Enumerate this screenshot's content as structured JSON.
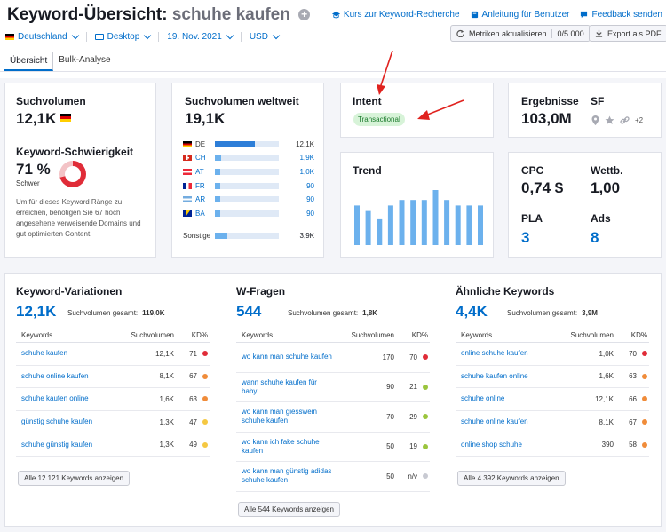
{
  "header": {
    "title": "Keyword-Übersicht:",
    "keyword": "schuhe kaufen",
    "links": {
      "research": "Kurs zur Keyword-Recherche",
      "manual": "Anleitung für Benutzer",
      "feedback": "Feedback senden"
    },
    "filters": {
      "country": "Deutschland",
      "device": "Desktop",
      "date": "19. Nov. 2021",
      "currency": "USD"
    },
    "update_button": "Metriken aktualisieren",
    "update_count": "0/5.000",
    "export_button": "Export als PDF",
    "tabs": [
      "Übersicht",
      "Bulk-Analyse"
    ]
  },
  "volume": {
    "label": "Suchvolumen",
    "value": "12,1K",
    "difficulty_label": "Keyword-Schwierigkeit",
    "difficulty_value": "71 %",
    "difficulty_text": "Schwer",
    "difficulty_percent": 71,
    "difficulty_color": "#e02c38",
    "description": "Um für dieses Keyword Ränge zu erreichen, benötigen Sie 67 hoch angesehene verweisende Domains und gut optimierten Content."
  },
  "global": {
    "label": "Suchvolumen weltweit",
    "value": "19,1K",
    "countries": [
      {
        "code": "DE",
        "value": "12,1K",
        "share": 0.63
      },
      {
        "code": "CH",
        "value": "1,9K",
        "share": 0.1
      },
      {
        "code": "AT",
        "value": "1,0K",
        "share": 0.06
      },
      {
        "code": "FR",
        "value": "90",
        "share": 0.02
      },
      {
        "code": "AR",
        "value": "90",
        "share": 0.02
      },
      {
        "code": "BA",
        "value": "90",
        "share": 0.02
      }
    ],
    "other_label": "Sonstige",
    "other_value": "3,9K",
    "other_share": 0.2
  },
  "intent": {
    "label": "Intent",
    "badge": "Transactional"
  },
  "trend": {
    "label": "Trend",
    "values": [
      0.72,
      0.62,
      0.47,
      0.72,
      0.82,
      0.82,
      0.82,
      1.0,
      0.82,
      0.72,
      0.72,
      0.72
    ]
  },
  "results": {
    "label": "Ergebnisse",
    "value": "103,0M",
    "sf_label": "SF",
    "sf_more": "+2"
  },
  "cpc": {
    "cpc_label": "CPC",
    "cpc_value": "0,74 $",
    "comp_label": "Wettb.",
    "comp_value": "1,00",
    "pla_label": "PLA",
    "pla_value": "3",
    "ads_label": "Ads",
    "ads_value": "8"
  },
  "sections": [
    {
      "title": "Keyword-Variationen",
      "count": "12,1K",
      "total_label": "Suchvolumen gesamt:",
      "total_value": "119,0K",
      "col_kw": "Keywords",
      "col_vol": "Suchvolumen",
      "col_kd": "KD%",
      "rows": [
        {
          "kw": "schuhe kaufen",
          "vol": "12,1K",
          "kd": "71",
          "color": "#e02c38"
        },
        {
          "kw": "schuhe online kaufen",
          "vol": "8,1K",
          "kd": "67",
          "color": "#f08c3a"
        },
        {
          "kw": "schuhe kaufen online",
          "vol": "1,6K",
          "kd": "63",
          "color": "#f08c3a"
        },
        {
          "kw": "günstig schuhe kaufen",
          "vol": "1,3K",
          "kd": "47",
          "color": "#f5c842"
        },
        {
          "kw": "schuhe günstig kaufen",
          "vol": "1,3K",
          "kd": "49",
          "color": "#f5c842"
        }
      ],
      "button": "Alle 12.121 Keywords anzeigen"
    },
    {
      "title": "W-Fragen",
      "count": "544",
      "total_label": "Suchvolumen gesamt:",
      "total_value": "1,8K",
      "col_kw": "Keywords",
      "col_vol": "Suchvolumen",
      "col_kd": "KD%",
      "rows": [
        {
          "kw": "wo kann man schuhe kaufen",
          "vol": "170",
          "kd": "70",
          "color": "#e02c38"
        },
        {
          "kw": "wann schuhe kaufen für baby",
          "vol": "90",
          "kd": "21",
          "color": "#9bc53d"
        },
        {
          "kw": "wo kann man giesswein schuhe kaufen",
          "vol": "70",
          "kd": "29",
          "color": "#9bc53d"
        },
        {
          "kw": "wo kann ich fake schuhe kaufen",
          "vol": "50",
          "kd": "19",
          "color": "#9bc53d"
        },
        {
          "kw": "wo kann man günstig adidas schuhe kaufen",
          "vol": "50",
          "kd": "n/v",
          "color": "#c8cad2"
        }
      ],
      "button": "Alle 544 Keywords anzeigen"
    },
    {
      "title": "Ähnliche Keywords",
      "count": "4,4K",
      "total_label": "Suchvolumen gesamt:",
      "total_value": "3,9M",
      "col_kw": "Keywords",
      "col_vol": "Suchvolumen",
      "col_kd": "KD%",
      "rows": [
        {
          "kw": "online schuhe kaufen",
          "vol": "1,0K",
          "kd": "70",
          "color": "#e02c38"
        },
        {
          "kw": "schuhe kaufen online",
          "vol": "1,6K",
          "kd": "63",
          "color": "#f08c3a"
        },
        {
          "kw": "schuhe online",
          "vol": "12,1K",
          "kd": "66",
          "color": "#f08c3a"
        },
        {
          "kw": "schuhe online kaufen",
          "vol": "8,1K",
          "kd": "67",
          "color": "#f08c3a"
        },
        {
          "kw": "online shop schuhe",
          "vol": "390",
          "kd": "58",
          "color": "#f08c3a"
        }
      ],
      "button": "Alle 4.392 Keywords anzeigen"
    }
  ]
}
